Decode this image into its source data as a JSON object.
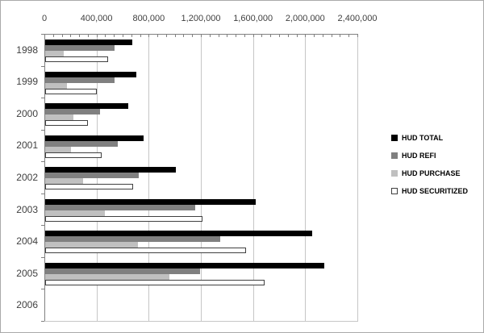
{
  "chart_data": {
    "type": "bar",
    "orientation": "horizontal",
    "title": "",
    "categories": [
      "1998",
      "1999",
      "2000",
      "2001",
      "2002",
      "2003",
      "2004",
      "2005",
      "2006"
    ],
    "series": [
      {
        "name": "HUD TOTAL",
        "color": "#000000",
        "border": "#000000",
        "values": [
          670000,
          700000,
          635000,
          755000,
          1000000,
          1615000,
          2050000,
          2140000,
          0
        ]
      },
      {
        "name": "HUD REFI",
        "color": "#808080",
        "border": "#808080",
        "values": [
          530000,
          530000,
          420000,
          555000,
          715000,
          1150000,
          1340000,
          1190000,
          0
        ]
      },
      {
        "name": "HUD PURCHASE",
        "color": "#c0c0c0",
        "border": "#c0c0c0",
        "values": [
          140000,
          170000,
          215000,
          200000,
          290000,
          460000,
          710000,
          950000,
          0
        ]
      },
      {
        "name": "HUD SECURITIZED",
        "color": "#ffffff",
        "border": "#404040",
        "values": [
          480000,
          395000,
          325000,
          430000,
          675000,
          1205000,
          1540000,
          1685000,
          0
        ]
      }
    ],
    "x_axis": {
      "position": "top",
      "min": 0,
      "max": 2400000,
      "major_tick_interval": 400000,
      "minor_divisions_per_major": 6,
      "tick_labels": [
        "0",
        "400,000",
        "800,000",
        "1,200,000",
        "1,600,000",
        "2,000,000",
        "2,400,000"
      ]
    },
    "y_axis": {
      "position": "left",
      "tick_labels": [
        "1998",
        "1999",
        "2000",
        "2001",
        "2002",
        "2003",
        "2004",
        "2005",
        "2006"
      ]
    },
    "legend": {
      "position": "right",
      "entries": [
        "HUD TOTAL",
        "HUD REFI",
        "HUD PURCHASE",
        "HUD SECURITIZED"
      ]
    },
    "grid": true,
    "colors": {
      "gridline": "#c6c6c6",
      "axis": "#808080",
      "label_text": "#3f3f3f",
      "legend_text": "#000000",
      "background": "#ffffff"
    }
  }
}
